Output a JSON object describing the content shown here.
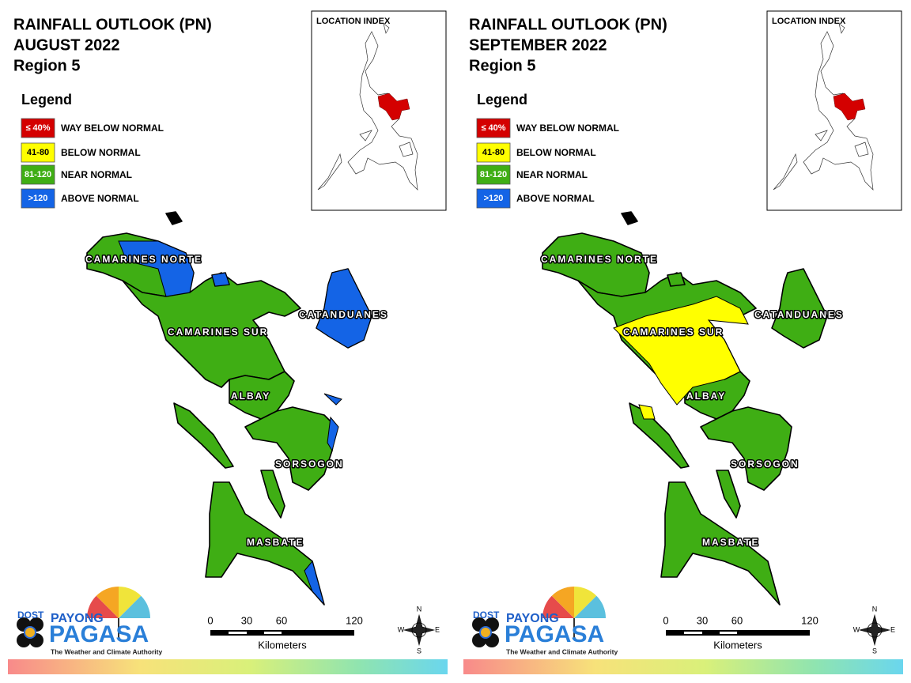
{
  "panels": [
    {
      "title": [
        "RAINFALL OUTLOOK (PN)",
        "AUGUST 2022",
        "Region 5"
      ],
      "legend": {
        "title": "Legend",
        "items": [
          {
            "label": "≤ 40%",
            "description": "WAY BELOW NORMAL",
            "color": "#d40000"
          },
          {
            "label": "41-80",
            "description": "BELOW NORMAL",
            "color": "#ffff00"
          },
          {
            "label": "81-120",
            "description": "NEAR NORMAL",
            "color": "#3fae14"
          },
          {
            "label": ">120",
            "description": "ABOVE NORMAL",
            "color": "#1464e6"
          }
        ]
      },
      "location_index": "LOCATION INDEX",
      "provinces": [
        "CAMARINES NORTE",
        "CATANDUANES",
        "CAMARINES SUR",
        "ALBAY",
        "SORSOGON",
        "MASBATE"
      ],
      "scale": {
        "ticks": [
          "0",
          "30",
          "60",
          "120"
        ],
        "unit": "Kilometers"
      },
      "compass": [
        "N",
        "E",
        "S",
        "W"
      ],
      "logo": {
        "agency": "DOST",
        "program": "PAYONG",
        "name": "PAGASA",
        "tagline": "The Weather and Climate Authority"
      }
    },
    {
      "title": [
        "RAINFALL OUTLOOK (PN)",
        "SEPTEMBER 2022",
        "Region 5"
      ],
      "legend": {
        "title": "Legend",
        "items": [
          {
            "label": "≤ 40%",
            "description": "WAY BELOW NORMAL",
            "color": "#d40000"
          },
          {
            "label": "41-80",
            "description": "BELOW NORMAL",
            "color": "#ffff00"
          },
          {
            "label": "81-120",
            "description": "NEAR NORMAL",
            "color": "#3fae14"
          },
          {
            "label": ">120",
            "description": "ABOVE NORMAL",
            "color": "#1464e6"
          }
        ]
      },
      "location_index": "LOCATION INDEX",
      "provinces": [
        "CAMARINES NORTE",
        "CATANDUANES",
        "CAMARINES SUR",
        "ALBAY",
        "SORSOGON",
        "MASBATE"
      ],
      "scale": {
        "ticks": [
          "0",
          "30",
          "60",
          "120"
        ],
        "unit": "Kilometers"
      },
      "compass": [
        "N",
        "E",
        "S",
        "W"
      ],
      "logo": {
        "agency": "DOST",
        "program": "PAYONG",
        "name": "PAGASA",
        "tagline": "The Weather and Climate Authority"
      }
    }
  ]
}
